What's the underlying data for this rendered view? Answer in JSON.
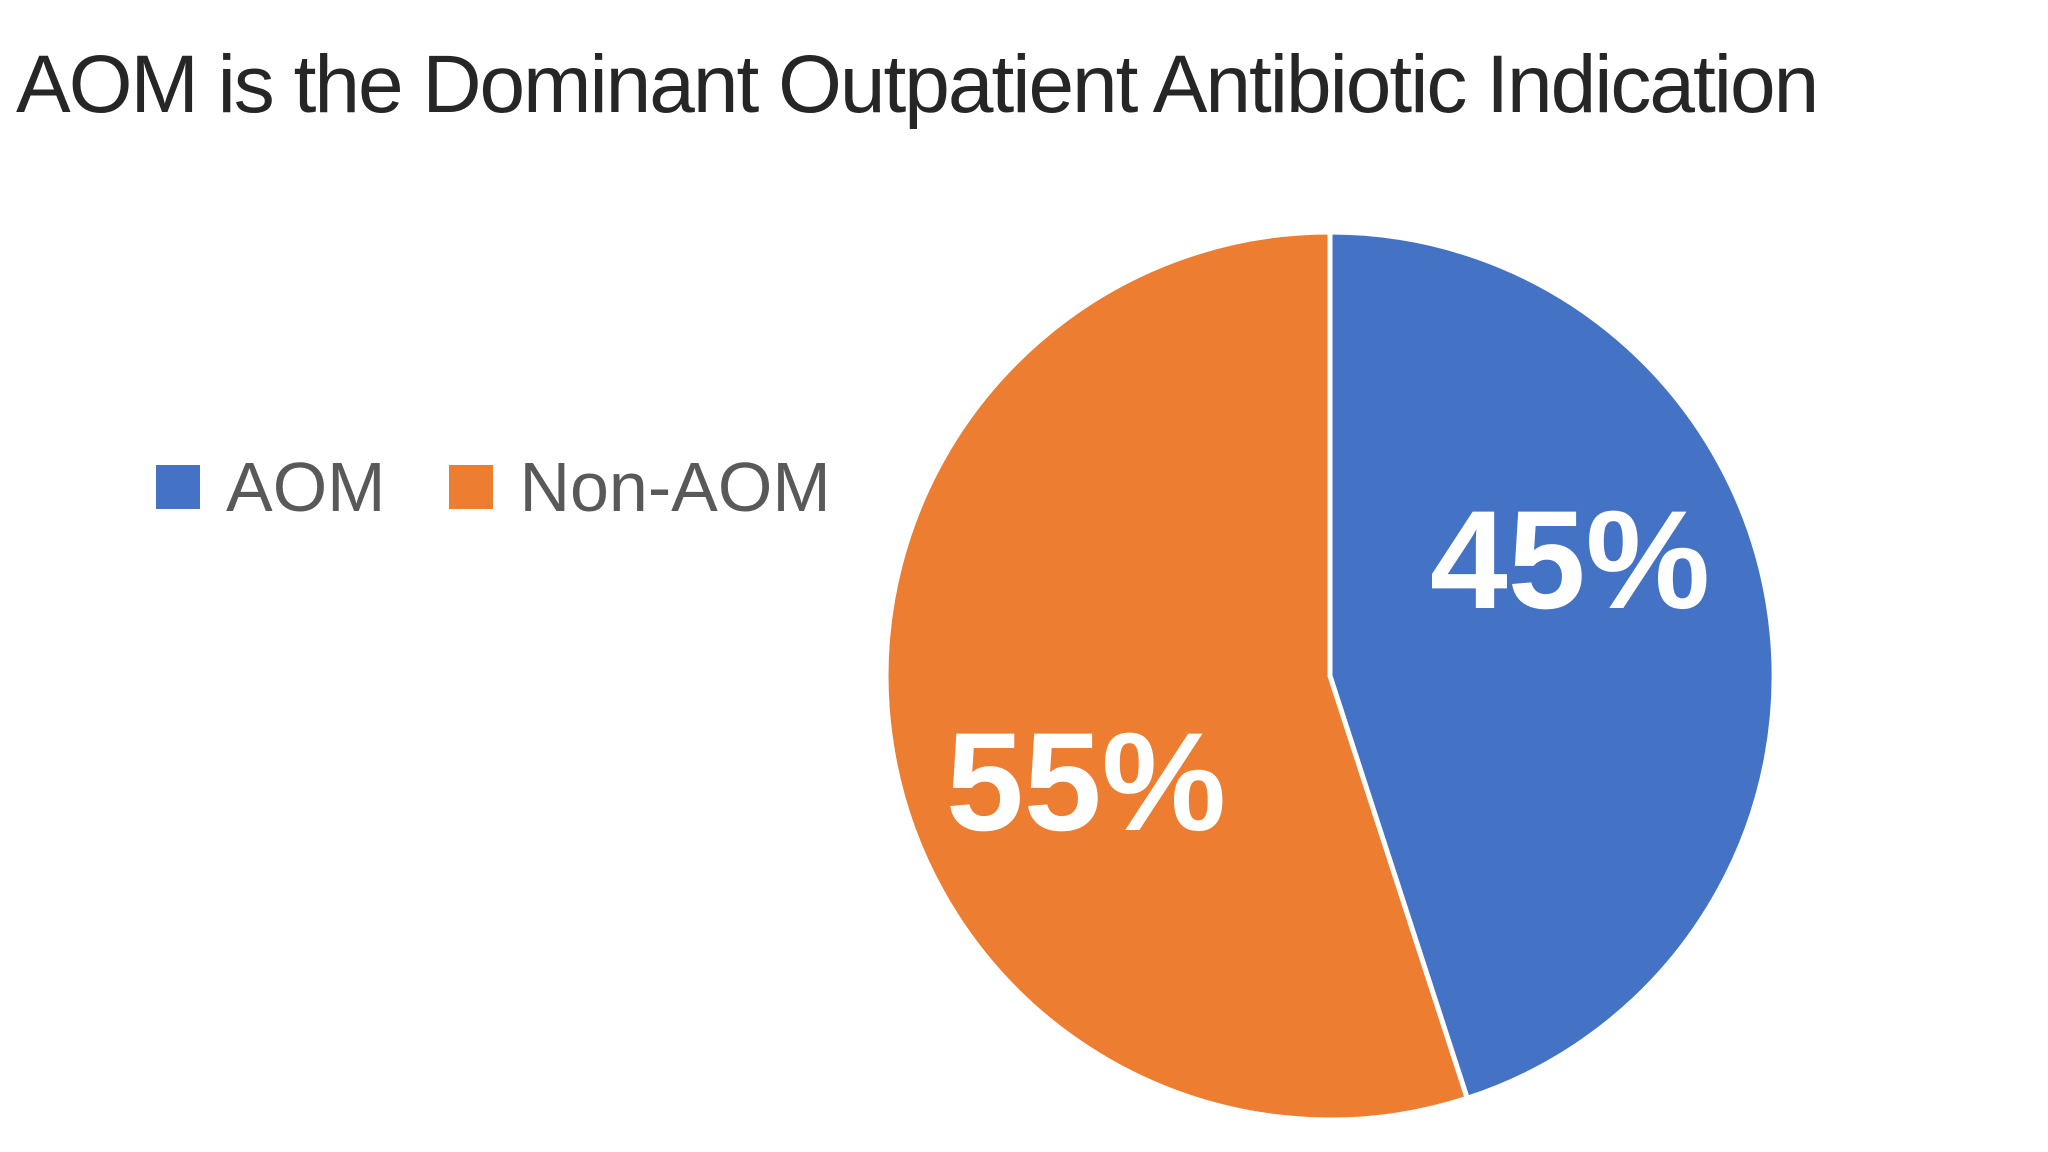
{
  "title": "AOM is the Dominant Outpatient Antibiotic Indication",
  "legend": {
    "items": [
      {
        "label": "AOM",
        "color": "#4472C4"
      },
      {
        "label": "Non-AOM",
        "color": "#ED7D31"
      }
    ]
  },
  "chart_data": {
    "type": "pie",
    "title": "AOM is the Dominant Outpatient Antibiotic Indication",
    "labels": [
      "AOM",
      "Non-AOM"
    ],
    "values": [
      45,
      55
    ],
    "unit": "percent",
    "colors": [
      "#4472C4",
      "#ED7D31"
    ],
    "data_labels": [
      "45%",
      "55%"
    ],
    "start_angle_deg": 0,
    "direction": "clockwise",
    "legend_position": "left-middle",
    "slice_border_color": "#FFFFFF"
  },
  "colors": {
    "background": "#FFFFFF",
    "title_text": "#262626",
    "legend_text": "#595959",
    "data_label_text": "#FFFFFF",
    "aom_blue": "#4472C4",
    "non_aom_orange": "#ED7D31"
  }
}
